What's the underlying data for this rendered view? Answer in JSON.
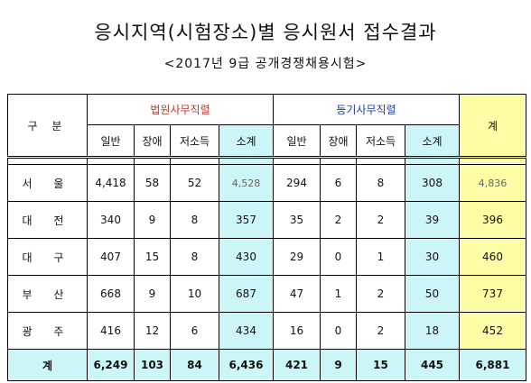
{
  "title": "응시지역(시험장소)별 응시원서 접수결과",
  "subtitle": "<2017년 9급 공개경쟁채용시험>",
  "table": {
    "corner": "구 분",
    "group_court": "법원사무직렬",
    "group_registry": "등기사무직렬",
    "total_header": "계",
    "subheaders": [
      "일반",
      "장애",
      "저소득",
      "소계",
      "일반",
      "장애",
      "저소득",
      "소계"
    ],
    "rows": [
      {
        "region": "서 울",
        "values": [
          "4,418",
          "58",
          "52",
          "4,528",
          "294",
          "6",
          "8",
          "308",
          "4,836"
        ]
      },
      {
        "region": "대 전",
        "values": [
          "340",
          "9",
          "8",
          "357",
          "35",
          "2",
          "2",
          "39",
          "396"
        ]
      },
      {
        "region": "대 구",
        "values": [
          "407",
          "15",
          "8",
          "430",
          "29",
          "0",
          "1",
          "30",
          "460"
        ]
      },
      {
        "region": "부 산",
        "values": [
          "668",
          "9",
          "10",
          "687",
          "47",
          "1",
          "2",
          "50",
          "737"
        ]
      },
      {
        "region": "광 주",
        "values": [
          "416",
          "12",
          "6",
          "434",
          "16",
          "0",
          "2",
          "18",
          "452"
        ]
      }
    ],
    "total_row": {
      "region": "계",
      "values": [
        "6,249",
        "103",
        "84",
        "6,436",
        "421",
        "9",
        "15",
        "445",
        "6,881"
      ]
    }
  },
  "colors": {
    "subtotal_bg": "#ccf5f7",
    "grand_total_bg": "#fffca6",
    "court_header": "#c0392b",
    "registry_header": "#1f3fa0"
  }
}
